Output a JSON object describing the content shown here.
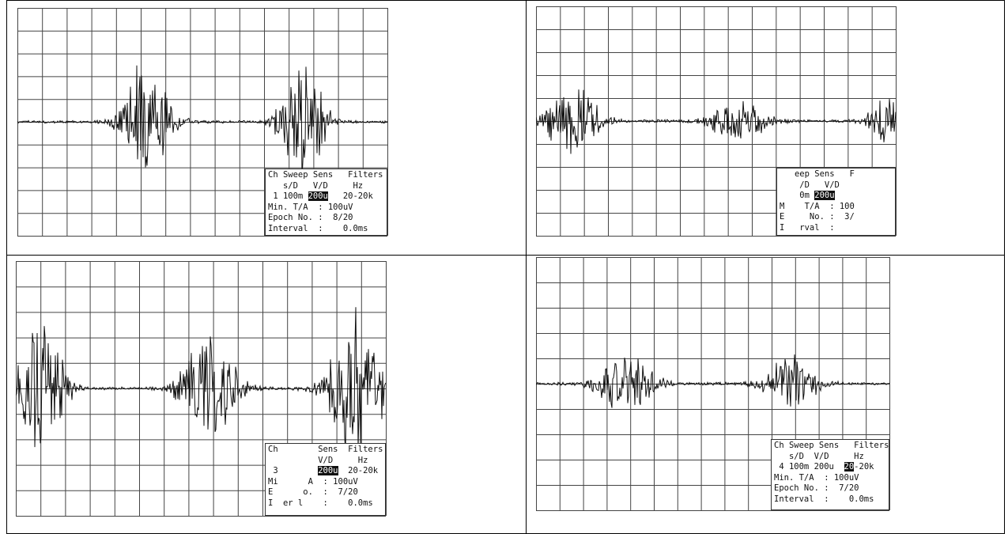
{
  "panels": [
    {
      "lines": [
        {
          "text": "Ch Sweep Sens   Filters"
        },
        {
          "text": "   s/D   V/D     Hz"
        },
        {
          "text": " 1 100m ",
          "highlight": "200u",
          "after": "   20-20k"
        },
        {
          "text": "Min. T/A  : 100uV"
        },
        {
          "text": "Epoch No. :  8/20"
        },
        {
          "text": "Interval  :    0.0ms"
        }
      ]
    },
    {
      "lines": [
        {
          "text": "   eep Sens   F"
        },
        {
          "text": "    /D   V/D"
        },
        {
          "text": "    0m ",
          "highlight": "200u"
        },
        {
          "text": "M    T/A  : 100"
        },
        {
          "text": "E     No. :  3/"
        },
        {
          "text": "I   rval  :"
        }
      ]
    },
    {
      "lines": [
        {
          "text": "Ch        Sens  Filters"
        },
        {
          "text": "          V/D     Hz"
        },
        {
          "text": " 3        ",
          "highlight": "200u",
          "after": "  20-20k"
        },
        {
          "text": "Mi      A  : 100uV"
        },
        {
          "text": "E      o.  :  7/20"
        },
        {
          "text": "I  er l    :    0.0ms"
        }
      ]
    },
    {
      "lines": [
        {
          "text": "Ch Sweep Sens   Filters"
        },
        {
          "text": "   s/D  V/D     Hz"
        },
        {
          "text": " 4 100m 200u  ",
          "highlight": "20",
          "after": "-20k"
        },
        {
          "text": "Min. T/A  : 100uV"
        },
        {
          "text": "Epoch No. :  7/20"
        },
        {
          "text": "Interval  :    0.0ms"
        }
      ]
    }
  ]
}
